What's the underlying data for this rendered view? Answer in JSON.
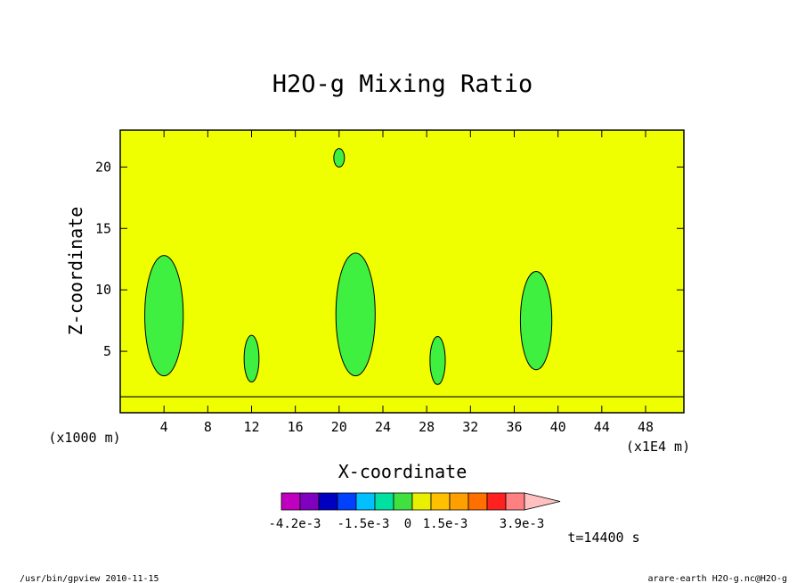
{
  "chart_data": {
    "type": "heatmap",
    "title": "H2O-g Mixing Ratio",
    "xlabel": "X-coordinate",
    "ylabel": "Z-coordinate",
    "x_scale_note": "(x1E4 m)",
    "y_scale_note": "(x1000 m)",
    "xlim": [
      0,
      51.5
    ],
    "ylim": [
      0,
      23
    ],
    "x_ticks": [
      "4",
      "8",
      "12",
      "16",
      "20",
      "24",
      "28",
      "32",
      "36",
      "40",
      "44",
      "48"
    ],
    "y_ticks": [
      "5",
      "10",
      "15",
      "20"
    ],
    "background_level": "0 to 1.5e-3",
    "colorbar": {
      "colors": [
        "#c000c0",
        "#8000c0",
        "#0000c0",
        "#0040ff",
        "#00c0ff",
        "#00e0a0",
        "#40e040",
        "#e8f000",
        "#ffc000",
        "#ffa000",
        "#ff7000",
        "#ff2020",
        "#ff8080",
        "#ffc0c0"
      ],
      "labels": [
        "-4.2e-3",
        "-1.5e-3",
        "0",
        "1.5e-3",
        "3.9e-3"
      ]
    },
    "features": [
      {
        "x": 4.0,
        "z_bottom": 3.0,
        "z_top": 12.8,
        "level": "green"
      },
      {
        "x": 21.5,
        "z_bottom": 3.0,
        "z_top": 13.0,
        "level": "green"
      },
      {
        "x": 38.0,
        "z_bottom": 3.5,
        "z_top": 11.5,
        "level": "green"
      },
      {
        "x": 12.0,
        "z_bottom": 2.5,
        "z_top": 6.3,
        "level": "green"
      },
      {
        "x": 29.0,
        "z_bottom": 2.3,
        "z_top": 6.2,
        "level": "green"
      },
      {
        "x": 20.0,
        "z_bottom": 20.0,
        "z_top": 21.5,
        "level": "green"
      }
    ]
  },
  "time_label": "t=14400 s",
  "footer": {
    "left": "/usr/bin/gpview  2010-11-15",
    "right": "arare-earth_H2O-g.nc@H2O-g"
  },
  "colors": {
    "background_fill": "#f0ff00",
    "contour_fill": "#40f040",
    "line": "#000000"
  }
}
